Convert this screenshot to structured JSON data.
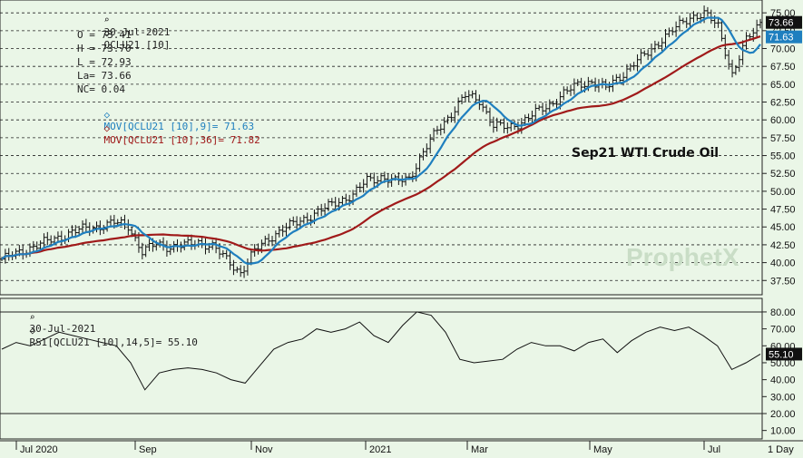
{
  "header": {
    "date": "30-Jul-2021",
    "symbol": "QCLU21 [10]",
    "open": "O = 73.41",
    "high": "H = 73.70",
    "low": "L = 72.93",
    "last": "La= 73.66",
    "net_change": "NC= 0.04",
    "mov9": "MOV[QCLU21 [10],9]= 71.63",
    "mov36": "MOV[QCLU21 [10],36]= 71.82"
  },
  "title": "Sep21 WTI Crude Oil",
  "watermark": "ProphetX",
  "rsi_header": {
    "date": "30-Jul-2021",
    "label": "RSI[QCLU21 [10],14,5]= 55.10"
  },
  "periodicity": "1 Day",
  "colors": {
    "background": "#eaf6e7",
    "price_bars": "#111111",
    "mov9": "#1f7fbf",
    "mov36": "#a01a1a",
    "last_tag": "#111111",
    "mov9_tag": "#1f7fbf",
    "grid": "#222222"
  },
  "chart_data": [
    {
      "type": "ohlc",
      "title": "Sep21 WTI Crude Oil",
      "x_labels": [
        "Jul 2020",
        "Sep",
        "Nov",
        "2021",
        "Mar",
        "May",
        "Jul"
      ],
      "y_ticks": [
        "37.50",
        "40.00",
        "42.50",
        "45.00",
        "47.50",
        "50.00",
        "52.50",
        "55.00",
        "57.50",
        "60.00",
        "62.50",
        "65.00",
        "67.50",
        "70.00",
        "72.50",
        "75.00"
      ],
      "ylim": [
        35.5,
        76.8
      ],
      "grid": "horizontal dashed",
      "closes_weekly": [
        40.5,
        41.2,
        42.1,
        42.8,
        43.5,
        44.3,
        44.8,
        45.1,
        45.6,
        45.2,
        41.5,
        42.6,
        42.2,
        42.4,
        42.9,
        42.3,
        40.4,
        38.6,
        41.6,
        43.4,
        44.7,
        45.6,
        46.6,
        47.6,
        48.7,
        49.4,
        51.6,
        52.0,
        51.3,
        51.9,
        55.4,
        58.6,
        60.9,
        63.4,
        62.8,
        59.2,
        58.9,
        59.7,
        61.0,
        62.1,
        63.7,
        64.9,
        65.4,
        64.4,
        66.1,
        67.9,
        69.4,
        71.4,
        72.9,
        74.4,
        74.9,
        73.1,
        66.4,
        71.1,
        73.66
      ],
      "series": [
        {
          "name": "MOV[QCLU21 [10],9]",
          "last": 71.63
        },
        {
          "name": "MOV[QCLU21 [10],36]",
          "last": 71.82
        }
      ],
      "last_price": 73.66,
      "tags": [
        "73.66",
        "71.63"
      ]
    },
    {
      "type": "line",
      "title": "RSI[QCLU21 [10],14,5]",
      "y_ticks": [
        "10.00",
        "20.00",
        "30.00",
        "40.00",
        "50.00",
        "60.00",
        "70.00",
        "80.00"
      ],
      "ylim": [
        5,
        88
      ],
      "reference_lines": [
        80,
        20
      ],
      "values": [
        58,
        62,
        60,
        64,
        68,
        66,
        64,
        62,
        60,
        50,
        34,
        44,
        46,
        47,
        46,
        44,
        40,
        38,
        48,
        58,
        62,
        64,
        70,
        68,
        70,
        74,
        66,
        62,
        72,
        80,
        78,
        68,
        52,
        50,
        51,
        52,
        58,
        62,
        60,
        60,
        57,
        62,
        64,
        56,
        63,
        68,
        71,
        69,
        71,
        66,
        60,
        46,
        50,
        55.1
      ],
      "last": 55.1,
      "tag": "55.10"
    }
  ]
}
